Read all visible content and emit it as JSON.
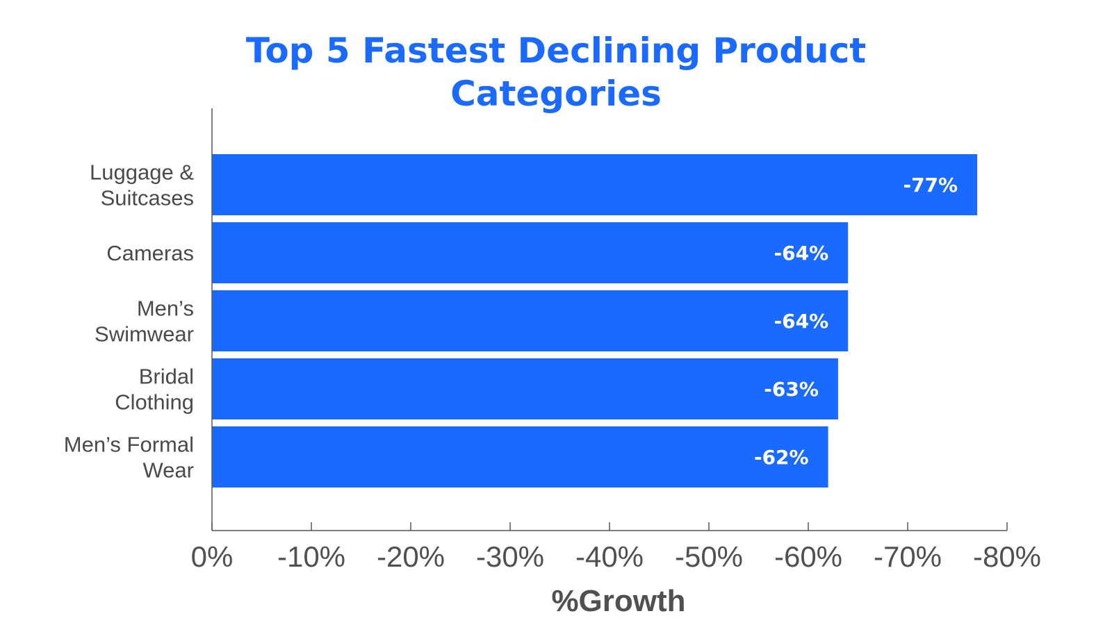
{
  "chart_data": {
    "type": "bar",
    "orientation": "horizontal",
    "title_lines": [
      "Top 5 Fastest Declining Product",
      "Categories"
    ],
    "categories": [
      [
        "Luggage &",
        "Suitcases"
      ],
      [
        "Cameras"
      ],
      [
        "Men’s",
        "Swimwear"
      ],
      [
        "Bridal",
        "Clothing"
      ],
      [
        "Men’s Formal",
        "Wear"
      ]
    ],
    "values": [
      -77,
      -64,
      -64,
      -63,
      -62
    ],
    "value_labels": [
      "-77%",
      "-64%",
      "-64%",
      "-63%",
      "-62%"
    ],
    "xlabel": "%Growth",
    "ylabel": "",
    "xlim": [
      0,
      -80
    ],
    "xticks": [
      0,
      -10,
      -20,
      -30,
      -40,
      -50,
      -60,
      -70,
      -80
    ],
    "xtick_labels": [
      "0%",
      "-10%",
      "-20%",
      "-30%",
      "-40%",
      "-50%",
      "-60%",
      "-70%",
      "-80%"
    ],
    "grid": false,
    "legend": "none",
    "bar_color": "#1a6aff"
  }
}
